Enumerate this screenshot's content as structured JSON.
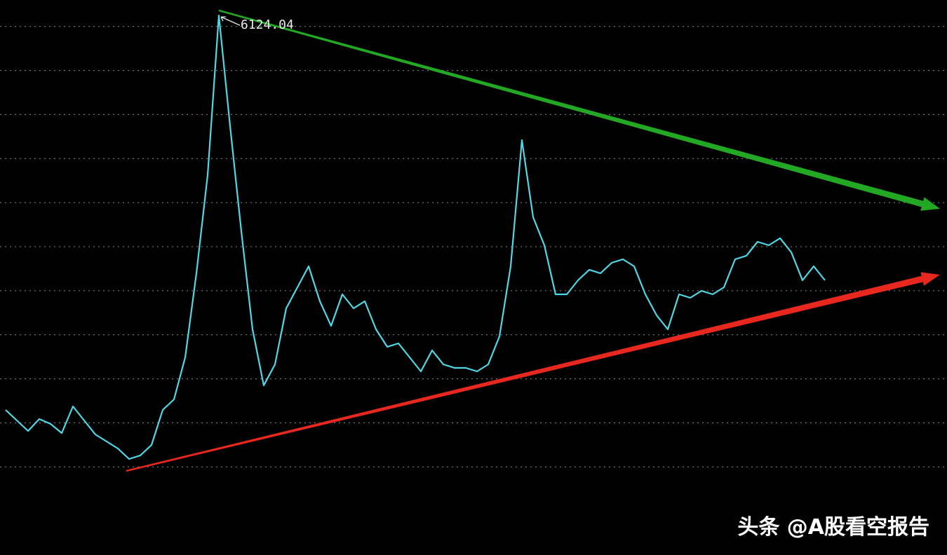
{
  "chart_data": {
    "type": "line",
    "watermark": "头条 @A股看空报告",
    "series": [
      {
        "color": "#4fd8e6",
        "values": [
          1647,
          1527,
          1408,
          1543,
          1488,
          1384,
          1686,
          1527,
          1368,
          1289,
          1209,
          1090,
          1130,
          1249,
          1647,
          1766,
          2243,
          3198,
          4312,
          6124.04,
          4868,
          3675,
          2562,
          1925,
          2164,
          2800,
          3039,
          3277,
          2880,
          2601,
          2959,
          2800,
          2880,
          2562,
          2363,
          2402,
          2243,
          2084,
          2323,
          2164,
          2124,
          2124,
          2084,
          2164,
          2482,
          3277,
          4709,
          3834,
          3516,
          2959,
          2959,
          3118,
          3238,
          3198,
          3317,
          3357,
          3277,
          2959,
          2721,
          2562,
          2959,
          2919,
          2999,
          2959,
          3039,
          3357,
          3397,
          3556,
          3516,
          3596,
          3437,
          3118,
          3277,
          3118
        ]
      }
    ],
    "labeled_points": [
      19
    ],
    "xlim": [
      -0.5,
      83.875
    ],
    "ylim": [
      0,
      6300
    ],
    "yticks": [
      1000,
      1500,
      2000,
      2500,
      3000,
      3500,
      4000,
      4500,
      5000,
      5500,
      6000
    ],
    "grid": true,
    "trendlines": [
      {
        "color": "#22a822",
        "x": [
          19,
          83.25
        ],
        "values": [
          6181,
          3930
        ]
      },
      {
        "color": "#e8281e",
        "x": [
          10.75,
          83.25
        ],
        "values": [
          955,
          3182
        ]
      }
    ]
  }
}
